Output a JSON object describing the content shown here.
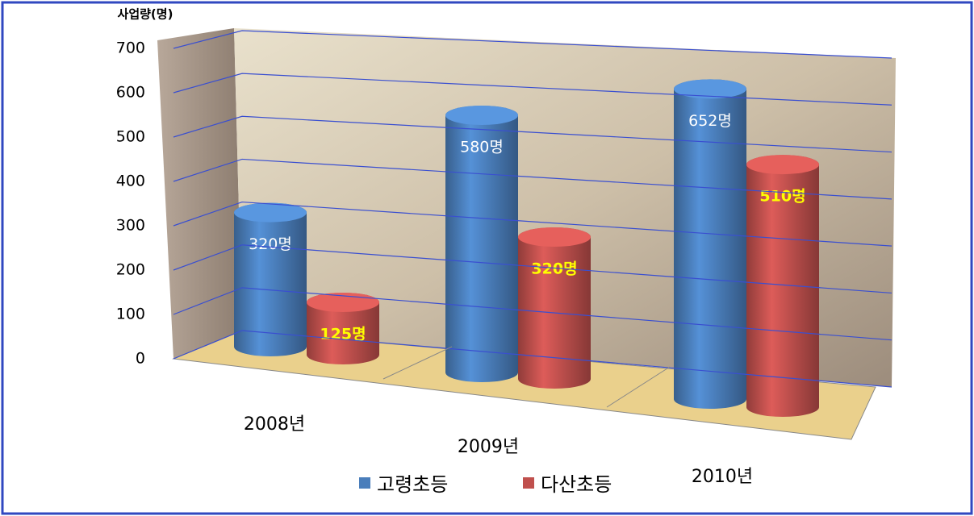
{
  "chart_data": {
    "type": "cylinder-bar",
    "y_label": "사업량(명)",
    "categories": [
      "2008년",
      "2009년",
      "2010년"
    ],
    "series": [
      {
        "name": "고령초등",
        "color": "#4a7ebb",
        "values": [
          320,
          580,
          652
        ],
        "value_labels": [
          "320명",
          "580명",
          "652명"
        ]
      },
      {
        "name": "다산초등",
        "color": "#c0504d",
        "values": [
          125,
          320,
          510
        ],
        "value_labels": [
          "125명",
          "320명",
          "510명"
        ]
      }
    ],
    "ylim": [
      0,
      700
    ],
    "yticks": [
      0,
      100,
      200,
      300,
      400,
      500,
      600,
      700
    ],
    "grid": true
  }
}
